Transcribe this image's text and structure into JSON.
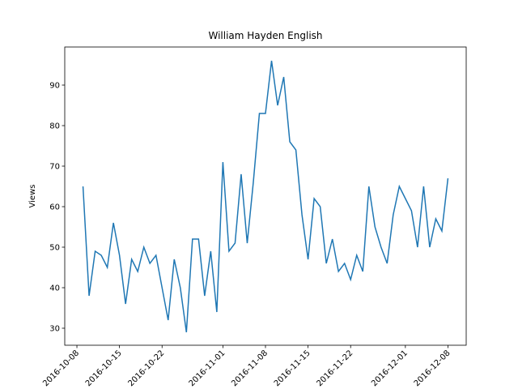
{
  "chart_data": {
    "type": "line",
    "title": "William Hayden English",
    "ylabel": "Views",
    "x": [
      "2016-10-09",
      "2016-10-10",
      "2016-10-11",
      "2016-10-12",
      "2016-10-13",
      "2016-10-14",
      "2016-10-15",
      "2016-10-16",
      "2016-10-17",
      "2016-10-18",
      "2016-10-19",
      "2016-10-20",
      "2016-10-21",
      "2016-10-22",
      "2016-10-23",
      "2016-10-24",
      "2016-10-25",
      "2016-10-26",
      "2016-10-27",
      "2016-10-28",
      "2016-10-29",
      "2016-10-30",
      "2016-10-31",
      "2016-11-01",
      "2016-11-02",
      "2016-11-03",
      "2016-11-04",
      "2016-11-05",
      "2016-11-06",
      "2016-11-07",
      "2016-11-08",
      "2016-11-09",
      "2016-11-10",
      "2016-11-11",
      "2016-11-12",
      "2016-11-13",
      "2016-11-14",
      "2016-11-15",
      "2016-11-16",
      "2016-11-17",
      "2016-11-18",
      "2016-11-19",
      "2016-11-20",
      "2016-11-21",
      "2016-11-22",
      "2016-11-23",
      "2016-11-24",
      "2016-11-25",
      "2016-11-26",
      "2016-11-27",
      "2016-11-28",
      "2016-11-29",
      "2016-11-30",
      "2016-12-01",
      "2016-12-02",
      "2016-12-03",
      "2016-12-04",
      "2016-12-05",
      "2016-12-06",
      "2016-12-07",
      "2016-12-08"
    ],
    "series": [
      {
        "name": "Views",
        "color": "#1f77b4",
        "values": [
          65,
          38,
          49,
          48,
          45,
          56,
          48,
          36,
          47,
          44,
          50,
          46,
          48,
          40,
          32,
          47,
          40,
          29,
          52,
          52,
          38,
          49,
          34,
          71,
          49,
          51,
          68,
          51,
          66,
          83,
          83,
          96,
          85,
          92,
          76,
          74,
          58,
          47,
          62,
          60,
          46,
          52,
          44,
          46,
          42,
          48,
          44,
          65,
          55,
          50,
          46,
          58,
          65,
          62,
          59,
          50,
          65,
          50,
          57,
          54,
          67
        ]
      }
    ],
    "xlim": [
      "2016-10-06",
      "2016-12-11"
    ],
    "xticks": [
      "2016-10-08",
      "2016-10-15",
      "2016-10-22",
      "2016-11-01",
      "2016-11-08",
      "2016-11-15",
      "2016-11-22",
      "2016-12-01",
      "2016-12-08"
    ],
    "ylim": [
      25.8,
      99.4
    ],
    "yticks": [
      30,
      40,
      50,
      60,
      70,
      80,
      90
    ]
  }
}
